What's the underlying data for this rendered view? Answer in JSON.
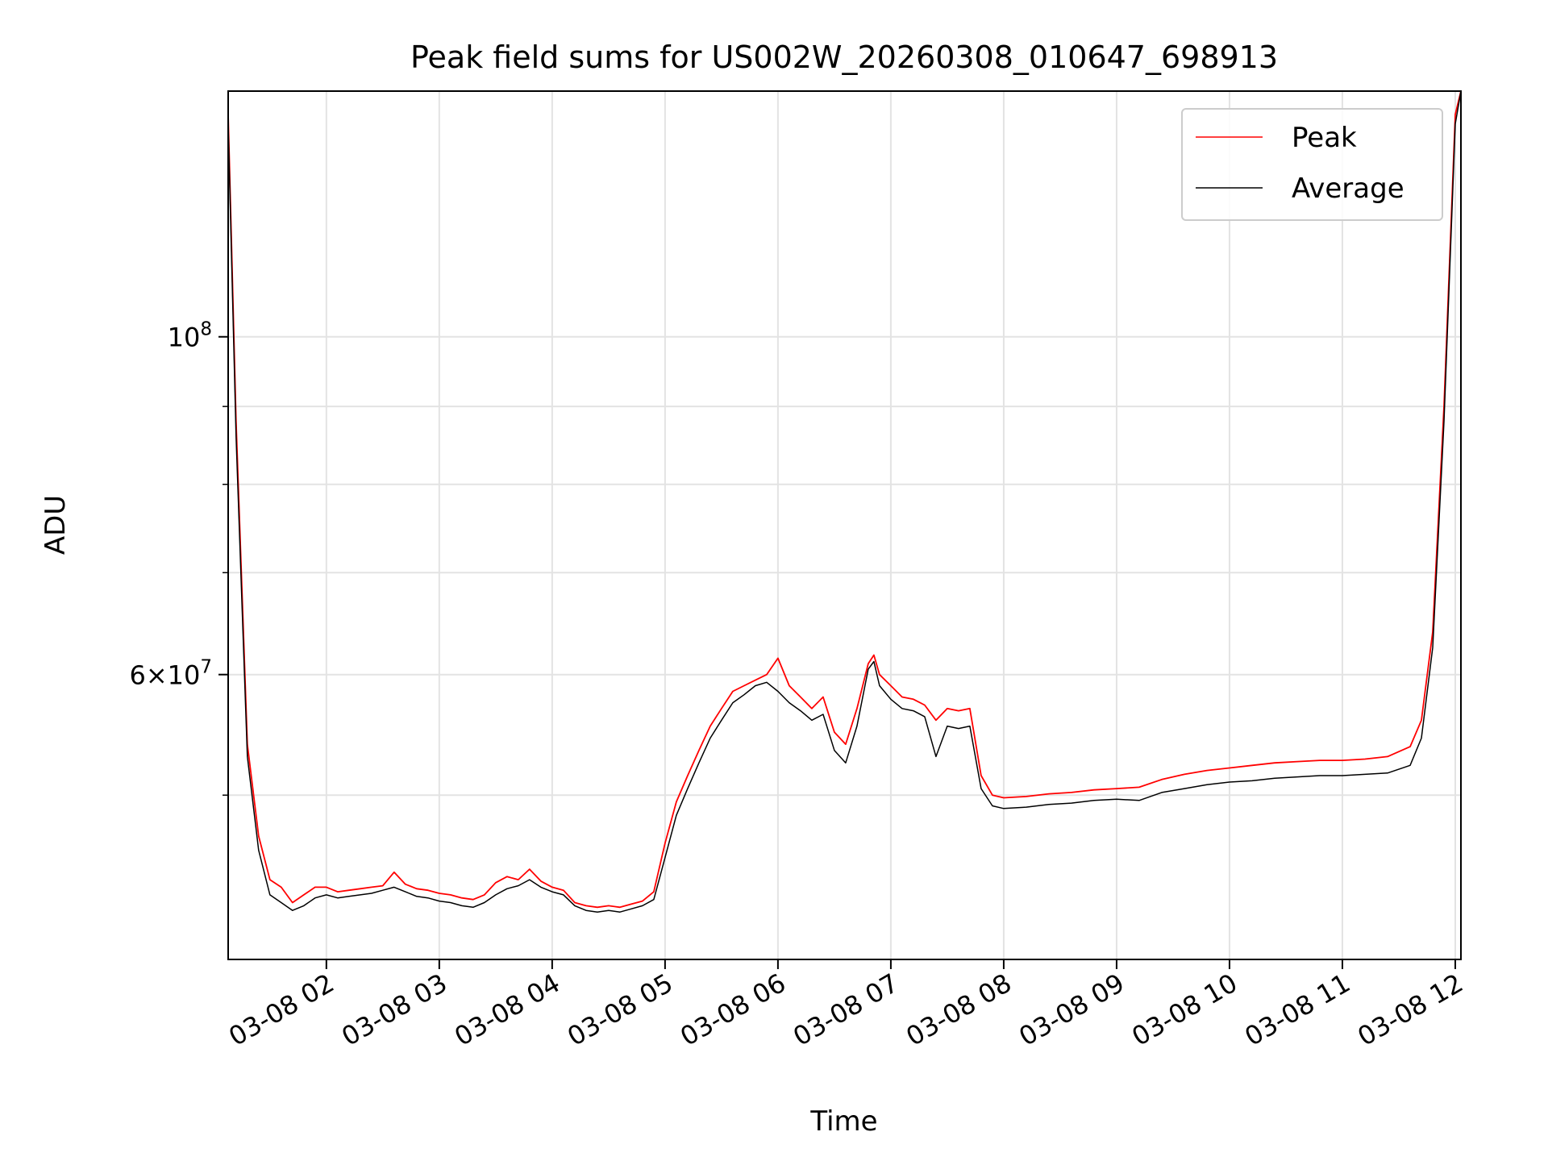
{
  "chart_data": {
    "type": "line",
    "title": "Peak field sums for US002W_20260308_010647_698913",
    "xlabel": "Time",
    "ylabel": "ADU",
    "yscale": "log",
    "xlim": [
      1.13,
      12.05
    ],
    "ylim": [
      39000000,
      145000000
    ],
    "grid": true,
    "legend_position": "top-right",
    "x_ticks": [
      {
        "value": 2,
        "label": "03-08 02"
      },
      {
        "value": 3,
        "label": "03-08 03"
      },
      {
        "value": 4,
        "label": "03-08 04"
      },
      {
        "value": 5,
        "label": "03-08 05"
      },
      {
        "value": 6,
        "label": "03-08 06"
      },
      {
        "value": 7,
        "label": "03-08 07"
      },
      {
        "value": 8,
        "label": "03-08 08"
      },
      {
        "value": 9,
        "label": "03-08 09"
      },
      {
        "value": 10,
        "label": "03-08 10"
      },
      {
        "value": 11,
        "label": "03-08 11"
      },
      {
        "value": 12,
        "label": "03-08 12"
      }
    ],
    "y_major_ticks": [
      {
        "value": 100000000,
        "base": "10",
        "exp": "8",
        "mantissa": ""
      },
      {
        "value": 60000000,
        "base": "10",
        "exp": "7",
        "mantissa": "6"
      }
    ],
    "y_minor_ticks": [
      50000000,
      70000000,
      80000000,
      90000000
    ],
    "series": [
      {
        "name": "Peak",
        "color": "#ff0000",
        "x": [
          1.13,
          1.2,
          1.3,
          1.4,
          1.5,
          1.6,
          1.7,
          1.8,
          1.9,
          2.0,
          2.1,
          2.2,
          2.3,
          2.4,
          2.5,
          2.6,
          2.7,
          2.8,
          2.9,
          3.0,
          3.1,
          3.2,
          3.3,
          3.4,
          3.5,
          3.6,
          3.7,
          3.8,
          3.9,
          4.0,
          4.1,
          4.2,
          4.3,
          4.4,
          4.5,
          4.6,
          4.7,
          4.8,
          4.9,
          5.0,
          5.1,
          5.2,
          5.3,
          5.4,
          5.5,
          5.6,
          5.7,
          5.8,
          5.9,
          6.0,
          6.1,
          6.2,
          6.3,
          6.4,
          6.5,
          6.6,
          6.7,
          6.8,
          6.85,
          6.9,
          7.0,
          7.1,
          7.2,
          7.3,
          7.4,
          7.5,
          7.6,
          7.7,
          7.8,
          7.9,
          8.0,
          8.2,
          8.4,
          8.6,
          8.8,
          9.0,
          9.2,
          9.4,
          9.6,
          9.8,
          10.0,
          10.2,
          10.4,
          10.6,
          10.8,
          11.0,
          11.2,
          11.4,
          11.6,
          11.7,
          11.8,
          11.9,
          12.0,
          12.05
        ],
        "y": [
          140000000,
          88000000,
          54000000,
          47000000,
          44000000,
          43500000,
          42500000,
          43000000,
          43500000,
          43500000,
          43200000,
          43300000,
          43400000,
          43500000,
          43600000,
          44500000,
          43700000,
          43400000,
          43300000,
          43100000,
          43000000,
          42800000,
          42700000,
          43000000,
          43800000,
          44200000,
          44000000,
          44700000,
          43900000,
          43500000,
          43300000,
          42500000,
          42300000,
          42200000,
          42300000,
          42200000,
          42400000,
          42600000,
          43200000,
          46500000,
          49500000,
          51500000,
          53500000,
          55500000,
          57000000,
          58500000,
          59000000,
          59500000,
          60000000,
          61500000,
          59000000,
          58000000,
          57000000,
          58000000,
          55000000,
          54000000,
          57000000,
          61000000,
          61800000,
          60000000,
          59000000,
          58000000,
          57800000,
          57300000,
          56000000,
          57000000,
          56800000,
          57000000,
          51500000,
          50000000,
          49800000,
          49900000,
          50100000,
          50200000,
          50400000,
          50500000,
          50600000,
          51200000,
          51600000,
          51900000,
          52100000,
          52300000,
          52500000,
          52600000,
          52700000,
          52700000,
          52800000,
          53000000,
          53800000,
          56000000,
          64000000,
          90000000,
          140000000,
          145000000
        ]
      },
      {
        "name": "Average",
        "color": "#000000",
        "x": [
          1.13,
          1.2,
          1.3,
          1.4,
          1.5,
          1.6,
          1.7,
          1.8,
          1.9,
          2.0,
          2.1,
          2.2,
          2.3,
          2.4,
          2.5,
          2.6,
          2.7,
          2.8,
          2.9,
          3.0,
          3.1,
          3.2,
          3.3,
          3.4,
          3.5,
          3.6,
          3.7,
          3.8,
          3.9,
          4.0,
          4.1,
          4.2,
          4.3,
          4.4,
          4.5,
          4.6,
          4.7,
          4.8,
          4.9,
          5.0,
          5.1,
          5.2,
          5.3,
          5.4,
          5.5,
          5.6,
          5.7,
          5.8,
          5.9,
          6.0,
          6.1,
          6.2,
          6.3,
          6.4,
          6.5,
          6.6,
          6.7,
          6.8,
          6.85,
          6.9,
          7.0,
          7.1,
          7.2,
          7.3,
          7.4,
          7.5,
          7.6,
          7.7,
          7.8,
          7.9,
          8.0,
          8.2,
          8.4,
          8.6,
          8.8,
          9.0,
          9.2,
          9.4,
          9.6,
          9.8,
          10.0,
          10.2,
          10.4,
          10.6,
          10.8,
          11.0,
          11.2,
          11.4,
          11.6,
          11.7,
          11.8,
          11.9,
          12.0,
          12.05
        ],
        "y": [
          138000000,
          86000000,
          53000000,
          46000000,
          43000000,
          42500000,
          42000000,
          42300000,
          42800000,
          43000000,
          42800000,
          42900000,
          43000000,
          43100000,
          43300000,
          43500000,
          43200000,
          42900000,
          42800000,
          42600000,
          42500000,
          42300000,
          42200000,
          42500000,
          43000000,
          43400000,
          43600000,
          44000000,
          43500000,
          43200000,
          43000000,
          42300000,
          42000000,
          41900000,
          42000000,
          41900000,
          42100000,
          42300000,
          42700000,
          45500000,
          48500000,
          50500000,
          52500000,
          54500000,
          56000000,
          57500000,
          58200000,
          59000000,
          59300000,
          58500000,
          57500000,
          56800000,
          56000000,
          56500000,
          53500000,
          52500000,
          55500000,
          60500000,
          61200000,
          59000000,
          57800000,
          57000000,
          56800000,
          56300000,
          53000000,
          55500000,
          55300000,
          55500000,
          50500000,
          49200000,
          49000000,
          49100000,
          49300000,
          49400000,
          49600000,
          49700000,
          49600000,
          50200000,
          50500000,
          50800000,
          51000000,
          51100000,
          51300000,
          51400000,
          51500000,
          51500000,
          51600000,
          51700000,
          52300000,
          54500000,
          62500000,
          88000000,
          138000000,
          145000000
        ]
      }
    ]
  }
}
